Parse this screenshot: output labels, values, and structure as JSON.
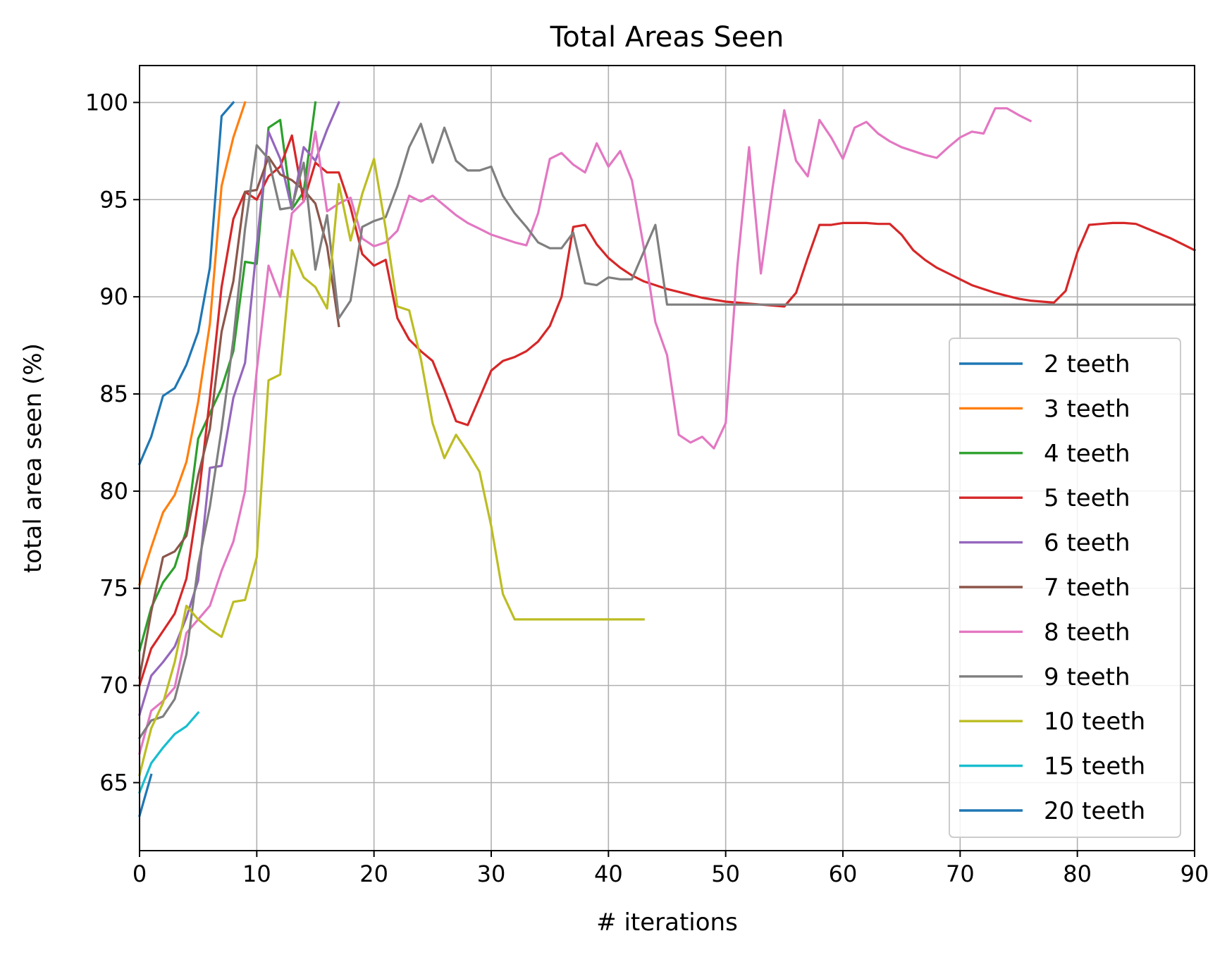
{
  "chart_data": {
    "type": "line",
    "title": "Total Areas Seen",
    "xlabel": "# iterations",
    "ylabel": "total area seen (%)",
    "xlim": [
      0,
      90
    ],
    "ylim": [
      61.5,
      101.9
    ],
    "xticks": [
      0,
      10,
      20,
      30,
      40,
      50,
      60,
      70,
      80,
      90
    ],
    "yticks": [
      65,
      70,
      75,
      80,
      85,
      90,
      95,
      100
    ],
    "grid": true,
    "legend_position": "lower right",
    "series": [
      {
        "name": "2 teeth",
        "color": "#1f77b4",
        "x": [
          0,
          1,
          2,
          3,
          4,
          5,
          6,
          7,
          8
        ],
        "y": [
          81.4,
          82.8,
          84.9,
          85.3,
          86.5,
          88.2,
          91.5,
          99.3,
          100
        ]
      },
      {
        "name": "3 teeth",
        "color": "#ff7f0e",
        "x": [
          0,
          1,
          2,
          3,
          4,
          5,
          6,
          7,
          8,
          9
        ],
        "y": [
          75.2,
          77.1,
          78.9,
          79.8,
          81.5,
          84.6,
          88.6,
          95.7,
          98.2,
          100
        ]
      },
      {
        "name": "4 teeth",
        "color": "#2ca02c",
        "x": [
          0,
          1,
          2,
          3,
          4,
          5,
          6,
          7,
          8,
          9,
          10,
          11,
          12,
          13,
          14,
          15
        ],
        "y": [
          71.8,
          74.0,
          75.3,
          76.1,
          78.0,
          82.7,
          84.0,
          85.3,
          87.2,
          91.8,
          91.7,
          98.7,
          99.1,
          94.5,
          95.4,
          100
        ]
      },
      {
        "name": "5 teeth",
        "color": "#d62728",
        "x": [
          0,
          1,
          2,
          3,
          4,
          5,
          6,
          7,
          8,
          9,
          10,
          11,
          12,
          13,
          14,
          15,
          16,
          17,
          18,
          19,
          20,
          21,
          22,
          23,
          24,
          25,
          26,
          27,
          28,
          29,
          30,
          31,
          32,
          33,
          34,
          35,
          36,
          37,
          38,
          39,
          40,
          41,
          42,
          43,
          44,
          45,
          46,
          47,
          48,
          49,
          50,
          51,
          52,
          53,
          54,
          55,
          56,
          57,
          58,
          59,
          60,
          61,
          62,
          63,
          64,
          65,
          66,
          67,
          68,
          69,
          70,
          71,
          72,
          73,
          74,
          75,
          76,
          77,
          78,
          79,
          80,
          81,
          82,
          83,
          84,
          85,
          86,
          87,
          88,
          89,
          90
        ],
        "y": [
          70.0,
          71.9,
          72.8,
          73.7,
          75.5,
          79.5,
          84.8,
          90.5,
          94.0,
          95.4,
          95.0,
          96.2,
          96.7,
          98.3,
          94.9,
          96.9,
          96.4,
          96.4,
          94.6,
          92.2,
          91.6,
          91.9,
          88.9,
          87.8,
          87.2,
          86.7,
          85.2,
          83.6,
          83.4,
          84.8,
          86.2,
          86.7,
          86.9,
          87.2,
          87.7,
          88.5,
          90.0,
          93.6,
          93.7,
          92.7,
          92.0,
          91.5,
          91.1,
          90.8,
          90.6,
          90.4,
          90.25,
          90.1,
          89.95,
          89.85,
          89.75,
          89.7,
          89.65,
          89.6,
          89.55,
          89.5,
          90.2,
          92.0,
          93.7,
          93.7,
          93.8,
          93.8,
          93.8,
          93.75,
          93.75,
          93.2,
          92.4,
          91.9,
          91.5,
          91.2,
          90.9,
          90.6,
          90.4,
          90.2,
          90.05,
          89.9,
          89.8,
          89.75,
          89.7,
          90.3,
          92.3,
          93.7,
          93.75,
          93.8,
          93.8,
          93.75,
          93.5,
          93.25,
          93.0,
          92.7,
          92.4
        ]
      },
      {
        "name": "6 teeth",
        "color": "#9467bd",
        "x": [
          0,
          1,
          2,
          3,
          4,
          5,
          6,
          7,
          8,
          9,
          10,
          11,
          12,
          13,
          14,
          15,
          16,
          17
        ],
        "y": [
          68.5,
          70.5,
          71.2,
          72.0,
          73.5,
          75.4,
          81.2,
          81.3,
          84.8,
          86.6,
          92.6,
          98.5,
          97.1,
          94.5,
          97.7,
          97.0,
          98.6,
          100
        ]
      },
      {
        "name": "7 teeth",
        "color": "#8c564b",
        "x": [
          0,
          1,
          2,
          3,
          4,
          5,
          6,
          7,
          8,
          9,
          10,
          11,
          12,
          13,
          14,
          15,
          16,
          17
        ],
        "y": [
          70.4,
          73.8,
          76.6,
          76.9,
          77.7,
          80.8,
          83.2,
          88.2,
          90.8,
          95.4,
          95.5,
          97.2,
          96.3,
          96.0,
          95.5,
          94.8,
          92.6,
          88.5
        ]
      },
      {
        "name": "8 teeth",
        "color": "#e377c2",
        "x": [
          0,
          1,
          2,
          3,
          4,
          5,
          6,
          7,
          8,
          9,
          10,
          11,
          12,
          13,
          14,
          15,
          16,
          17,
          18,
          19,
          20,
          21,
          22,
          23,
          24,
          25,
          26,
          27,
          28,
          29,
          30,
          31,
          32,
          33,
          34,
          35,
          36,
          37,
          38,
          39,
          40,
          41,
          42,
          43,
          44,
          45,
          46,
          47,
          48,
          49,
          50,
          51,
          52,
          53,
          54,
          55,
          56,
          57,
          58,
          59,
          60,
          61,
          62,
          63,
          64,
          65,
          66,
          67,
          68,
          69,
          70,
          71,
          72,
          73,
          74,
          75,
          76
        ],
        "y": [
          66.5,
          68.7,
          69.2,
          69.9,
          72.7,
          73.4,
          74.1,
          75.9,
          77.4,
          80.0,
          86.2,
          91.6,
          90.0,
          94.3,
          94.9,
          98.5,
          94.4,
          94.8,
          95.1,
          93.0,
          92.6,
          92.8,
          93.4,
          95.2,
          94.9,
          95.2,
          94.7,
          94.2,
          93.8,
          93.5,
          93.2,
          93.0,
          92.8,
          92.65,
          94.3,
          97.1,
          97.4,
          96.8,
          96.4,
          97.9,
          96.7,
          97.5,
          96.0,
          92.6,
          88.7,
          87.0,
          82.9,
          82.5,
          82.8,
          82.2,
          83.5,
          91.6,
          97.7,
          91.2,
          95.6,
          99.6,
          97.0,
          96.2,
          99.1,
          98.2,
          97.1,
          98.7,
          99.0,
          98.4,
          98.0,
          97.7,
          97.5,
          97.3,
          97.15,
          97.7,
          98.2,
          98.5,
          98.4,
          99.7,
          99.7,
          99.35,
          99.05
        ]
      },
      {
        "name": "9 teeth",
        "color": "#7f7f7f",
        "x": [
          0,
          1,
          2,
          3,
          4,
          5,
          6,
          7,
          8,
          9,
          10,
          11,
          12,
          13,
          14,
          15,
          16,
          17,
          18,
          19,
          20,
          21,
          22,
          23,
          24,
          25,
          26,
          27,
          28,
          29,
          30,
          31,
          32,
          33,
          34,
          35,
          36,
          37,
          38,
          39,
          40,
          41,
          42,
          43,
          44,
          45,
          46,
          50,
          55,
          60,
          70,
          80,
          90
        ],
        "y": [
          67.3,
          68.2,
          68.4,
          69.3,
          71.6,
          76.2,
          79.2,
          83.2,
          87.8,
          93.5,
          97.8,
          97.1,
          94.5,
          94.6,
          96.9,
          91.4,
          94.2,
          88.9,
          89.8,
          93.6,
          93.9,
          94.1,
          95.7,
          97.7,
          98.9,
          96.9,
          98.7,
          97.0,
          96.5,
          96.5,
          96.7,
          95.2,
          94.3,
          93.6,
          92.8,
          92.5,
          92.5,
          93.3,
          90.7,
          90.6,
          91.0,
          90.9,
          90.9,
          92.3,
          93.7,
          89.6,
          89.6,
          89.6,
          89.6,
          89.6,
          89.6,
          89.6,
          89.6
        ]
      },
      {
        "name": "10 teeth",
        "color": "#bcbd22",
        "x": [
          0,
          1,
          2,
          3,
          4,
          5,
          6,
          7,
          8,
          9,
          10,
          11,
          12,
          13,
          14,
          15,
          16,
          17,
          18,
          19,
          20,
          21,
          22,
          23,
          24,
          25,
          26,
          27,
          28,
          29,
          30,
          31,
          32,
          33,
          34,
          35,
          36,
          37,
          38,
          39,
          40,
          41,
          42,
          43
        ],
        "y": [
          65.4,
          67.8,
          69.1,
          71.2,
          74.1,
          73.4,
          72.9,
          72.5,
          74.3,
          74.4,
          76.6,
          85.7,
          86.0,
          92.4,
          91.0,
          90.5,
          89.4,
          95.8,
          92.9,
          95.3,
          97.1,
          93.5,
          89.5,
          89.3,
          86.8,
          83.5,
          81.7,
          82.9,
          82.0,
          81.0,
          78.2,
          74.7,
          73.4,
          73.4,
          73.4,
          73.4,
          73.4,
          73.4,
          73.4,
          73.4,
          73.4,
          73.4,
          73.4,
          73.4
        ]
      },
      {
        "name": "15 teeth",
        "color": "#17becf",
        "x": [
          0,
          1,
          2,
          3,
          4,
          5
        ],
        "y": [
          64.5,
          66.0,
          66.8,
          67.5,
          67.9,
          68.6
        ]
      },
      {
        "name": "20 teeth",
        "color": "#1f77b4",
        "x": [
          0,
          1
        ],
        "y": [
          63.3,
          65.4
        ]
      }
    ]
  }
}
